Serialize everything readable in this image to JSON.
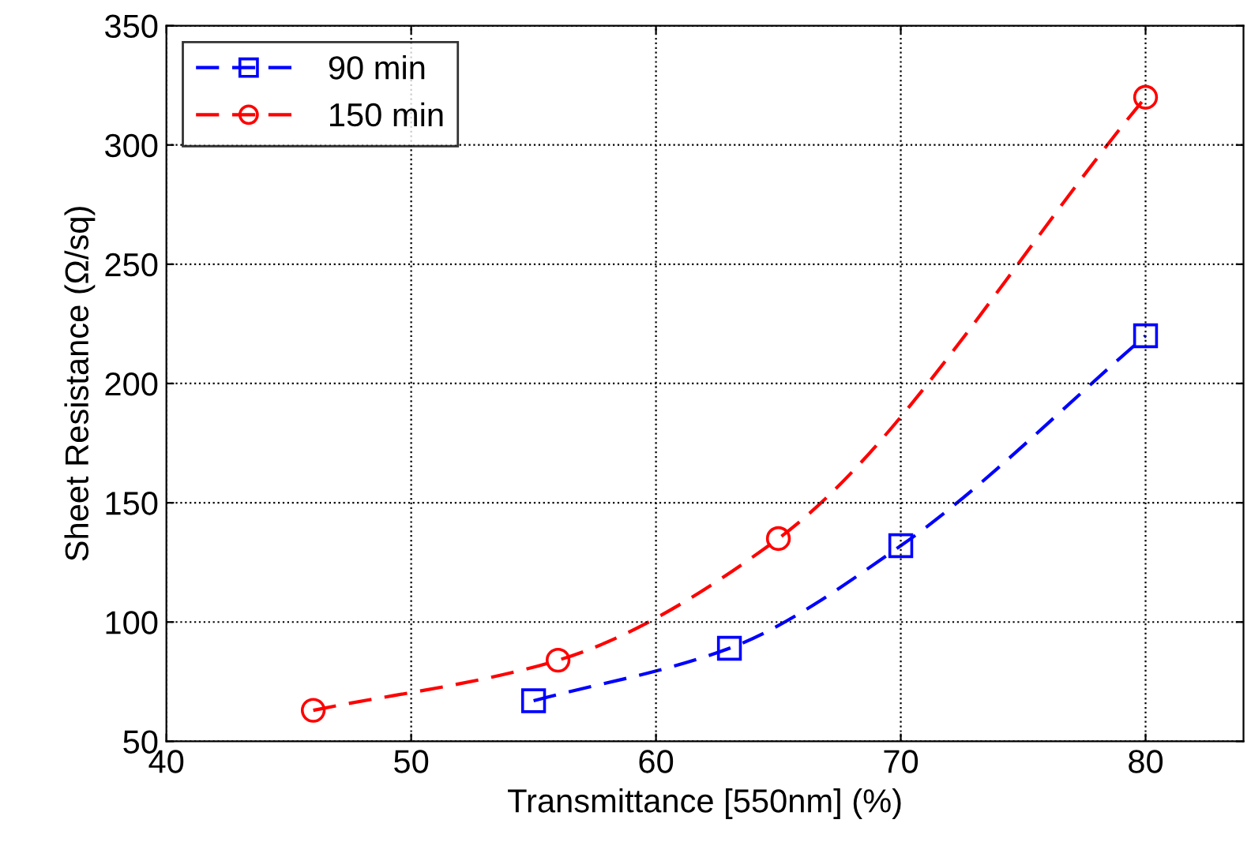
{
  "chart_data": {
    "type": "line",
    "xlabel": "Transmittance [550nm] (%)",
    "ylabel": "Sheet Resistance (Ω/sq)",
    "xlim": [
      40,
      84
    ],
    "xticks": [
      40,
      50,
      60,
      70,
      80
    ],
    "ylim": [
      50,
      350
    ],
    "yticks": [
      50,
      100,
      150,
      200,
      250,
      300,
      350
    ],
    "grid": true,
    "legend": "top left",
    "line_style": "dashed",
    "series": [
      {
        "name": "90 min",
        "color": "#0000ff",
        "marker": "square",
        "x": [
          55,
          63,
          70,
          80
        ],
        "values": [
          67,
          89,
          132,
          220
        ]
      },
      {
        "name": "150 min",
        "color": "#ff0000",
        "marker": "circle",
        "x": [
          46,
          56,
          65,
          80
        ],
        "values": [
          63,
          84,
          135,
          320
        ]
      }
    ]
  }
}
